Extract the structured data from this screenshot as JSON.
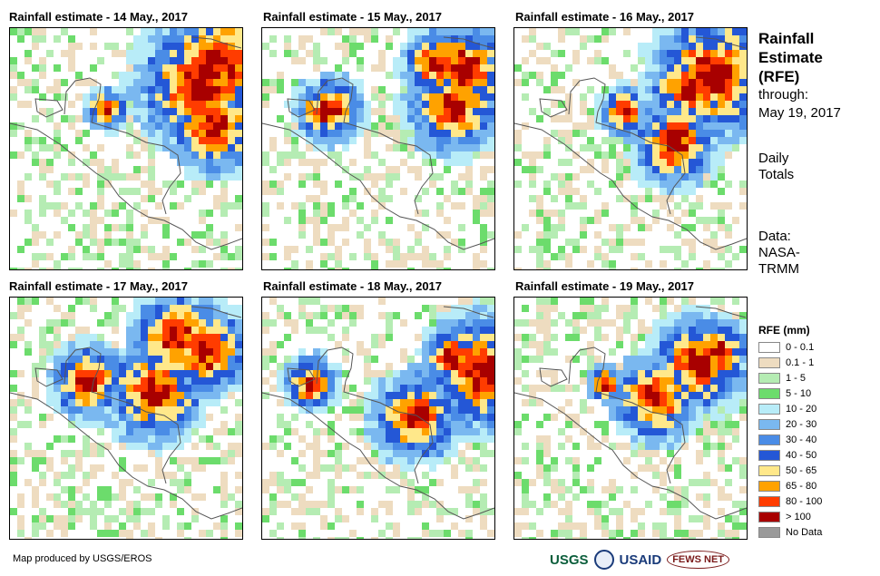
{
  "panels": [
    {
      "title": "Rainfall estimate - 14 May., 2017"
    },
    {
      "title": "Rainfall estimate - 15 May., 2017"
    },
    {
      "title": "Rainfall estimate - 16 May., 2017"
    },
    {
      "title": "Rainfall estimate - 17 May., 2017"
    },
    {
      "title": "Rainfall estimate - 18 May., 2017"
    },
    {
      "title": "Rainfall estimate - 19 May., 2017"
    }
  ],
  "side": {
    "title_line1": "Rainfall",
    "title_line2": "Estimate",
    "title_line3": "(RFE)",
    "through_label": "through:",
    "through_date": "May 19, 2017",
    "period_line1": "Daily",
    "period_line2": "Totals",
    "data_line1": "Data:",
    "data_line2": "NASA-",
    "data_line3": "TRMM"
  },
  "legend": {
    "title": "RFE (mm)",
    "items": [
      {
        "label": "0 - 0.1",
        "color": "#ffffff"
      },
      {
        "label": "0.1 - 1",
        "color": "#eedcc0"
      },
      {
        "label": "1 - 5",
        "color": "#b5ecb3"
      },
      {
        "label": "5 - 10",
        "color": "#6cdc6c"
      },
      {
        "label": "10 - 20",
        "color": "#b8ecf8"
      },
      {
        "label": "20 - 30",
        "color": "#7ab8f0"
      },
      {
        "label": "30 - 40",
        "color": "#4a8ce6"
      },
      {
        "label": "40 - 50",
        "color": "#2457d6"
      },
      {
        "label": "50 - 65",
        "color": "#ffe88a"
      },
      {
        "label": "65 - 80",
        "color": "#ffa200"
      },
      {
        "label": "80 - 100",
        "color": "#ff3c00"
      },
      {
        "label": "> 100",
        "color": "#a80000"
      },
      {
        "label": "No Data",
        "color": "#9a9a9a"
      }
    ]
  },
  "footer": {
    "credit": "Map produced by USGS/EROS"
  },
  "logos": {
    "usgs": "USGS",
    "usaid": "USAID",
    "fews": "FEWS NET"
  },
  "colors": {
    "coast": "#555555",
    "border": "#000000"
  }
}
